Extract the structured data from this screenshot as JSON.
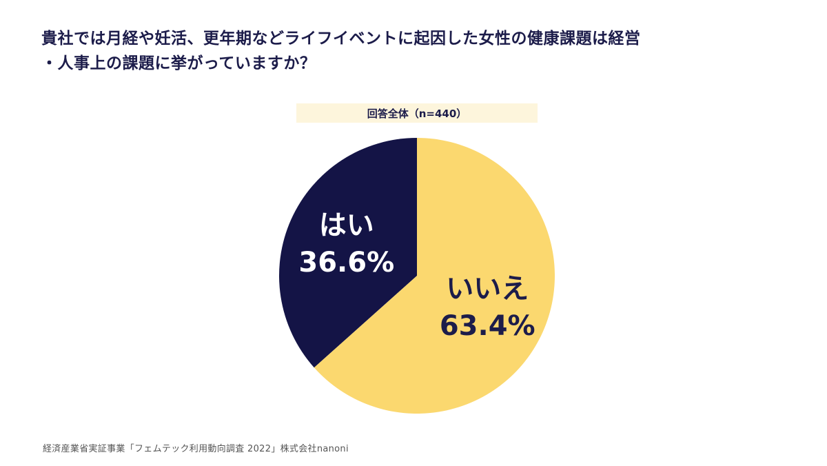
{
  "question_line1": "貴社では月経や妊活、更年期などライフイベントに起因した女性の健康課題は経営",
  "question_line2": "・人事上の課題に挙がっていますか？",
  "base_label": "回答全体（n=440）",
  "source": "経済産業省実証事業「フェムテック利用動向調査 2022」株式会社nanoni",
  "chart_data": {
    "type": "pie",
    "title": "",
    "slices": [
      {
        "label": "はい",
        "value": 36.6,
        "value_text": "36.6%",
        "color": "#141446",
        "text_color": "#ffffff"
      },
      {
        "label": "いいえ",
        "value": 63.4,
        "value_text": "63.4%",
        "color": "#fbd86f",
        "text_color": "#1c1c4a"
      }
    ],
    "start": "top",
    "direction": "counterclockwise-for-first-slice"
  }
}
